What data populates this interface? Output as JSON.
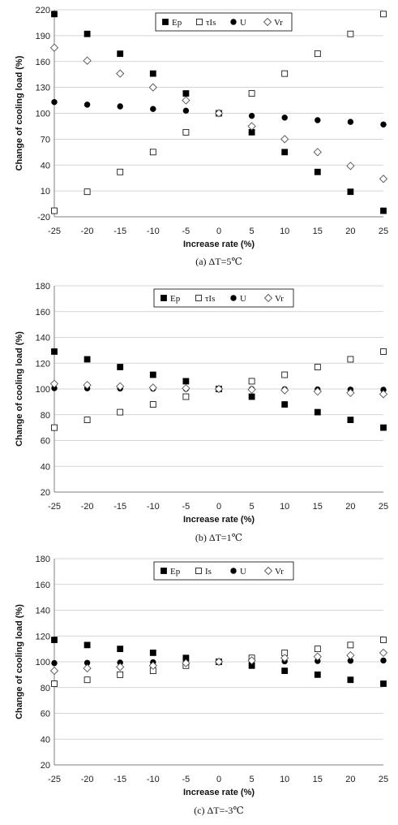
{
  "chart_data": [
    {
      "type": "scatter",
      "title": "",
      "caption": "(a)  ΔT=5℃",
      "xlabel": "Increase rate (%)",
      "ylabel": "Change of cooling load (%)",
      "xlim": [
        -25,
        25
      ],
      "ylim": [
        -20,
        220
      ],
      "x_ticks": [
        -25,
        -20,
        -15,
        -10,
        -5,
        0,
        5,
        10,
        15,
        20,
        25
      ],
      "x_tick_labels": [
        "-25",
        "-20",
        "-15",
        "-10",
        "-5",
        "0",
        "5",
        "10",
        "15",
        "20",
        "25"
      ],
      "y_ticks": [
        -20,
        10,
        40,
        70,
        100,
        130,
        160,
        190,
        220
      ],
      "y_tick_labels": [
        "-20",
        "10",
        "40",
        "70",
        "100",
        "130",
        "160",
        "190",
        "220"
      ],
      "grid": "horizontal",
      "legend_position": "top-center",
      "x": [
        -25,
        -20,
        -15,
        -10,
        -5,
        0,
        5,
        10,
        15,
        20,
        25
      ],
      "series": [
        {
          "name": "Ep",
          "marker": "filled-square",
          "values": [
            215,
            192,
            169,
            146,
            123,
            100,
            78,
            55,
            32,
            9,
            -13
          ]
        },
        {
          "name": "τIs",
          "marker": "open-square",
          "values": [
            -13,
            9,
            32,
            55,
            78,
            100,
            123,
            146,
            169,
            192,
            215
          ]
        },
        {
          "name": "U",
          "marker": "filled-circle",
          "values": [
            113,
            110,
            108,
            105,
            103,
            100,
            97,
            95,
            92,
            90,
            87
          ]
        },
        {
          "name": "Vr",
          "marker": "open-diamond",
          "values": [
            176,
            161,
            146,
            130,
            115,
            100,
            85,
            70,
            55,
            39,
            24
          ]
        }
      ]
    },
    {
      "type": "scatter",
      "title": "",
      "caption": "(b)  ΔT=1℃",
      "xlabel": "Increase rate (%)",
      "ylabel": "Change of cooling load (%)",
      "xlim": [
        -25,
        25
      ],
      "ylim": [
        20,
        180
      ],
      "x_ticks": [
        -25,
        -20,
        -15,
        -10,
        -5,
        0,
        5,
        10,
        15,
        20,
        25
      ],
      "x_tick_labels": [
        "-25",
        "-20",
        "-15",
        "-10",
        "-5",
        "0",
        "5",
        "10",
        "15",
        "20",
        "25"
      ],
      "y_ticks": [
        20,
        40,
        60,
        80,
        100,
        120,
        140,
        160,
        180
      ],
      "y_tick_labels": [
        "20",
        "40",
        "60",
        "80",
        "100",
        "120",
        "140",
        "160",
        "180"
      ],
      "grid": "horizontal",
      "legend_position": "top-center",
      "x": [
        -25,
        -20,
        -15,
        -10,
        -5,
        0,
        5,
        10,
        15,
        20,
        25
      ],
      "series": [
        {
          "name": "Ep",
          "marker": "filled-square",
          "values": [
            129,
            123,
            117,
            111,
            106,
            100,
            94,
            88,
            82,
            76,
            70
          ]
        },
        {
          "name": "τIs",
          "marker": "open-square",
          "values": [
            70,
            76,
            82,
            88,
            94,
            100,
            106,
            111,
            117,
            123,
            129
          ]
        },
        {
          "name": "U",
          "marker": "filled-circle",
          "values": [
            100.6,
            100.5,
            100.4,
            100.2,
            100.1,
            100,
            99.9,
            99.8,
            99.6,
            99.5,
            99.4
          ]
        },
        {
          "name": "Vr",
          "marker": "open-diamond",
          "values": [
            104,
            103,
            102,
            101,
            100.5,
            100,
            99.5,
            99,
            98,
            97,
            96
          ]
        }
      ]
    },
    {
      "type": "scatter",
      "title": "",
      "caption": "(c)  ΔT=-3℃",
      "xlabel": "Increase rate (%)",
      "ylabel": "Change of cooling load (%)",
      "xlim": [
        -25,
        25
      ],
      "ylim": [
        20,
        180
      ],
      "x_ticks": [
        -25,
        -20,
        -15,
        -10,
        -5,
        0,
        5,
        10,
        15,
        20,
        25
      ],
      "x_tick_labels": [
        "-25",
        "-20",
        "-15",
        "-10",
        "-5",
        "0",
        "5",
        "10",
        "15",
        "20",
        "25"
      ],
      "y_ticks": [
        20,
        40,
        60,
        80,
        100,
        120,
        140,
        160,
        180
      ],
      "y_tick_labels": [
        "20",
        "40",
        "60",
        "80",
        "100",
        "120",
        "140",
        "160",
        "180"
      ],
      "grid": "horizontal",
      "legend_position": "top-center",
      "x": [
        -25,
        -20,
        -15,
        -10,
        -5,
        0,
        5,
        10,
        15,
        20,
        25
      ],
      "series": [
        {
          "name": "Ep",
          "marker": "filled-square",
          "values": [
            117,
            113,
            110,
            107,
            103,
            100,
            97,
            93,
            90,
            86,
            83
          ]
        },
        {
          "name": "Is",
          "marker": "open-square",
          "values": [
            83,
            86,
            90,
            93,
            97,
            100,
            103,
            107,
            110,
            113,
            117
          ]
        },
        {
          "name": "U",
          "marker": "filled-circle",
          "values": [
            99,
            99.2,
            99.4,
            99.6,
            99.8,
            100,
            100.2,
            100.4,
            100.6,
            100.8,
            101
          ]
        },
        {
          "name": "Vr",
          "marker": "open-diamond",
          "values": [
            93,
            95,
            96,
            97,
            99,
            100,
            101,
            103,
            104,
            105,
            107
          ]
        }
      ]
    }
  ]
}
